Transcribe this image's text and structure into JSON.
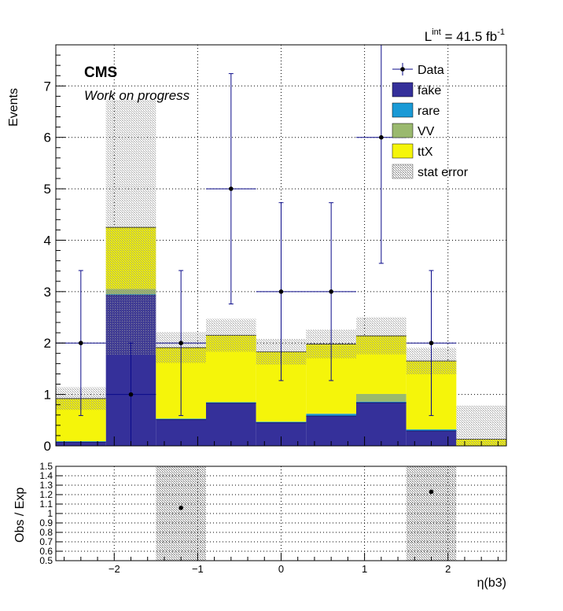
{
  "header": {
    "lumi_base": "L",
    "lumi_sup": "int",
    "lumi_value": " = 41.5 fb",
    "lumi_unit_sup": "-1"
  },
  "labels": {
    "cms": "CMS",
    "subtitle": "Work on progress"
  },
  "colors": {
    "fake": "#35309a",
    "rare": "#1a9ad6",
    "VV": "#9ab96e",
    "ttX": "#f5f50a",
    "data": "#000000",
    "errorbar": "#0a0a8a",
    "grid": "#000000",
    "hatch": "#888888"
  },
  "chart_data": [
    {
      "type": "bar",
      "stacked": true,
      "xlabel": "",
      "ylabel": "Events",
      "xlim": [
        -2.7,
        2.7
      ],
      "ylim": [
        0,
        7.8
      ],
      "yticks": [
        0,
        1,
        2,
        3,
        4,
        5,
        6,
        7
      ],
      "xticks": [
        -2,
        -1,
        0,
        1,
        2
      ],
      "bin_edges": [
        -2.7,
        -2.1,
        -1.5,
        -0.9,
        -0.3,
        0.3,
        0.9,
        1.5,
        2.1,
        2.7
      ],
      "grid": true,
      "legend_position": "top-right",
      "legend": [
        {
          "label": "Data",
          "kind": "marker"
        },
        {
          "label": "fake",
          "kind": "fill",
          "color_key": "fake"
        },
        {
          "label": "rare",
          "kind": "fill",
          "color_key": "rare"
        },
        {
          "label": "VV",
          "kind": "fill",
          "color_key": "VV"
        },
        {
          "label": "ttX",
          "kind": "fill",
          "color_key": "ttX"
        },
        {
          "label": "stat error",
          "kind": "hatch"
        }
      ],
      "series": [
        {
          "name": "fake",
          "values": [
            0.07,
            2.93,
            0.51,
            0.83,
            0.45,
            0.58,
            0.84,
            0.29,
            0.0
          ]
        },
        {
          "name": "rare",
          "values": [
            0.02,
            0.02,
            0.02,
            0.02,
            0.02,
            0.04,
            0.02,
            0.03,
            0.0
          ]
        },
        {
          "name": "VV",
          "values": [
            0.0,
            0.1,
            0.0,
            0.0,
            0.0,
            0.01,
            0.15,
            0.0,
            0.0
          ]
        },
        {
          "name": "ttX",
          "values": [
            0.83,
            1.2,
            1.38,
            1.3,
            1.36,
            1.35,
            1.13,
            1.33,
            0.13
          ]
        }
      ],
      "stat_error": [
        0.22,
        2.48,
        0.3,
        0.32,
        0.25,
        0.28,
        0.36,
        0.26,
        0.65
      ],
      "data_points": {
        "x": [
          -2.4,
          -1.8,
          -1.2,
          -0.6,
          0.0,
          0.6,
          1.2,
          1.8
        ],
        "y": [
          2,
          1,
          2,
          5,
          3,
          3,
          6,
          2
        ],
        "err_low": [
          1.41,
          1.0,
          1.41,
          2.24,
          1.73,
          1.73,
          2.45,
          1.41
        ],
        "err_high": [
          1.41,
          1.0,
          1.41,
          2.24,
          1.73,
          1.73,
          2.45,
          1.41
        ],
        "x_half_width": 0.3
      }
    },
    {
      "type": "scatter",
      "xlabel": "η(b3)",
      "ylabel": "Obs / Exp",
      "xlim": [
        -2.7,
        2.7
      ],
      "ylim": [
        0.5,
        1.5
      ],
      "yticks": [
        0.5,
        0.6,
        0.7,
        0.8,
        0.9,
        1,
        1.1,
        1.2,
        1.3,
        1.4,
        1.5
      ],
      "xticks": [
        -2,
        -1,
        0,
        1,
        2
      ],
      "grid": true,
      "points": {
        "x": [
          -1.2,
          1.8
        ],
        "y": [
          1.06,
          1.23
        ]
      },
      "stat_bands": [
        {
          "x_low": -1.5,
          "x_high": -0.9
        },
        {
          "x_low": 1.5,
          "x_high": 2.1
        }
      ]
    }
  ]
}
